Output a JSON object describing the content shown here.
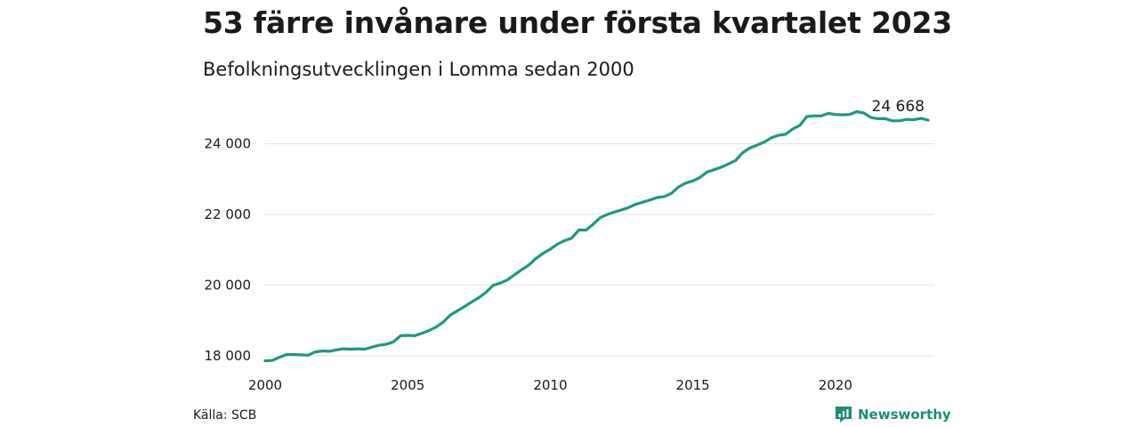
{
  "header": {
    "title": "53 färre invånare under första kvartalet 2023",
    "subtitle": "Befolkningsutvecklingen i Lomma sedan 2000"
  },
  "footer": {
    "source": "Källa: SCB",
    "brand": "Newsworthy",
    "brand_icon": "newsworthy-logo-icon"
  },
  "colors": {
    "line": "#1f9683",
    "grid": "#e3e3e3",
    "text": "#1a1a1a",
    "brand": "#1f8c76"
  },
  "chart_data": {
    "type": "line",
    "title": "53 färre invånare under första kvartalet 2023",
    "subtitle": "Befolkningsutvecklingen i Lomma sedan 2000",
    "xlabel": "",
    "ylabel": "",
    "x_ticks": [
      "2000",
      "2005",
      "2010",
      "2015",
      "2020"
    ],
    "y_ticks": [
      "18 000",
      "20 000",
      "22 000",
      "24 000"
    ],
    "x_tick_values": [
      2000,
      2005,
      2010,
      2015,
      2020
    ],
    "y_tick_values": [
      18000,
      20000,
      22000,
      24000
    ],
    "xlim": [
      2000,
      2023.25
    ],
    "ylim": [
      17750,
      25350
    ],
    "grid": "horizontal",
    "end_label": "24 668",
    "series": [
      {
        "points": [
          [
            2000.0,
            17860
          ],
          [
            2000.25,
            17870
          ],
          [
            2000.5,
            17960
          ],
          [
            2000.75,
            18040
          ],
          [
            2001.0,
            18040
          ],
          [
            2001.25,
            18030
          ],
          [
            2001.5,
            18020
          ],
          [
            2001.75,
            18110
          ],
          [
            2002.0,
            18140
          ],
          [
            2002.25,
            18130
          ],
          [
            2002.5,
            18170
          ],
          [
            2002.75,
            18200
          ],
          [
            2003.0,
            18190
          ],
          [
            2003.25,
            18200
          ],
          [
            2003.5,
            18190
          ],
          [
            2003.75,
            18250
          ],
          [
            2004.0,
            18300
          ],
          [
            2004.25,
            18330
          ],
          [
            2004.5,
            18400
          ],
          [
            2004.75,
            18570
          ],
          [
            2005.0,
            18580
          ],
          [
            2005.25,
            18570
          ],
          [
            2005.5,
            18640
          ],
          [
            2005.75,
            18720
          ],
          [
            2006.0,
            18820
          ],
          [
            2006.25,
            18960
          ],
          [
            2006.5,
            19160
          ],
          [
            2006.75,
            19280
          ],
          [
            2007.0,
            19400
          ],
          [
            2007.25,
            19530
          ],
          [
            2007.5,
            19650
          ],
          [
            2007.75,
            19800
          ],
          [
            2008.0,
            20000
          ],
          [
            2008.25,
            20060
          ],
          [
            2008.5,
            20150
          ],
          [
            2008.75,
            20300
          ],
          [
            2009.0,
            20440
          ],
          [
            2009.25,
            20570
          ],
          [
            2009.5,
            20760
          ],
          [
            2009.75,
            20900
          ],
          [
            2010.0,
            21020
          ],
          [
            2010.25,
            21160
          ],
          [
            2010.5,
            21260
          ],
          [
            2010.75,
            21330
          ],
          [
            2011.0,
            21560
          ],
          [
            2011.25,
            21560
          ],
          [
            2011.5,
            21720
          ],
          [
            2011.75,
            21910
          ],
          [
            2012.0,
            22000
          ],
          [
            2012.25,
            22070
          ],
          [
            2012.5,
            22130
          ],
          [
            2012.75,
            22200
          ],
          [
            2013.0,
            22290
          ],
          [
            2013.25,
            22350
          ],
          [
            2013.5,
            22410
          ],
          [
            2013.75,
            22480
          ],
          [
            2014.0,
            22510
          ],
          [
            2014.25,
            22600
          ],
          [
            2014.5,
            22780
          ],
          [
            2014.75,
            22890
          ],
          [
            2015.0,
            22950
          ],
          [
            2015.25,
            23050
          ],
          [
            2015.5,
            23200
          ],
          [
            2015.75,
            23270
          ],
          [
            2016.0,
            23340
          ],
          [
            2016.25,
            23430
          ],
          [
            2016.5,
            23530
          ],
          [
            2016.75,
            23750
          ],
          [
            2017.0,
            23880
          ],
          [
            2017.25,
            23960
          ],
          [
            2017.5,
            24050
          ],
          [
            2017.75,
            24170
          ],
          [
            2018.0,
            24240
          ],
          [
            2018.25,
            24270
          ],
          [
            2018.5,
            24420
          ],
          [
            2018.75,
            24520
          ],
          [
            2019.0,
            24770
          ],
          [
            2019.25,
            24790
          ],
          [
            2019.5,
            24790
          ],
          [
            2019.75,
            24860
          ],
          [
            2020.0,
            24830
          ],
          [
            2020.25,
            24820
          ],
          [
            2020.5,
            24830
          ],
          [
            2020.75,
            24910
          ],
          [
            2021.0,
            24870
          ],
          [
            2021.25,
            24740
          ],
          [
            2021.5,
            24710
          ],
          [
            2021.75,
            24710
          ],
          [
            2022.0,
            24650
          ],
          [
            2022.25,
            24650
          ],
          [
            2022.5,
            24690
          ],
          [
            2022.75,
            24680
          ],
          [
            2023.0,
            24721
          ],
          [
            2023.25,
            24668
          ]
        ]
      }
    ]
  }
}
